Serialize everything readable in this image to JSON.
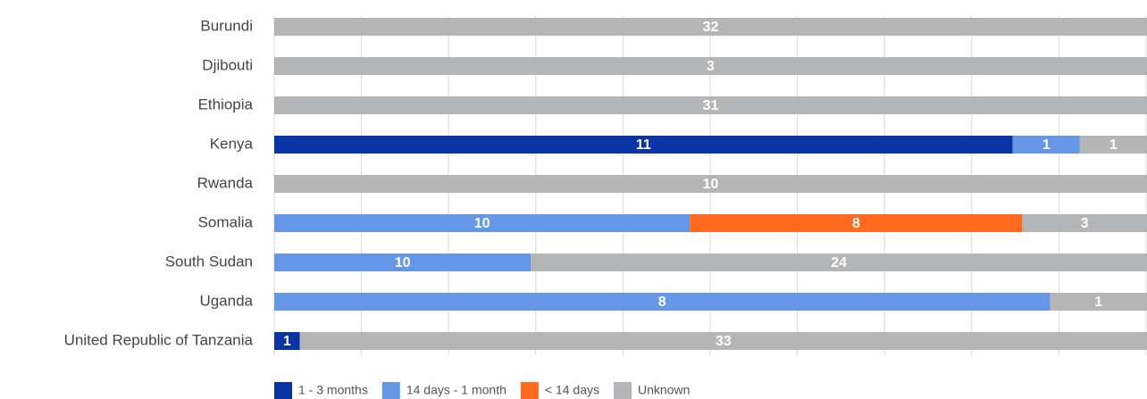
{
  "chart_data": {
    "type": "bar",
    "orientation": "horizontal",
    "stacking": "percent",
    "categories": [
      "Burundi",
      "Djibouti",
      "Ethiopia",
      "Kenya",
      "Rwanda",
      "Somalia",
      "South Sudan",
      "Uganda",
      "United Republic of Tanzania"
    ],
    "series": [
      {
        "name": "1 - 3 months",
        "color": "#0a34a3",
        "values": [
          null,
          null,
          null,
          11,
          null,
          null,
          null,
          null,
          1
        ]
      },
      {
        "name": "14 days - 1 month",
        "color": "#6597e6",
        "values": [
          null,
          null,
          null,
          1,
          null,
          10,
          10,
          8,
          null
        ]
      },
      {
        "name": "< 14 days",
        "color": "#ff6a1f",
        "values": [
          null,
          null,
          null,
          null,
          null,
          8,
          null,
          null,
          null
        ]
      },
      {
        "name": "Unknown",
        "color": "#b3b5b7",
        "values": [
          32,
          3,
          31,
          1,
          10,
          3,
          24,
          1,
          33
        ]
      }
    ],
    "xlim": [
      0,
      100
    ],
    "xticks": [
      0,
      10,
      20,
      30,
      40,
      50,
      60,
      70,
      80,
      90,
      100
    ],
    "grid": true,
    "legend": "bottom"
  }
}
